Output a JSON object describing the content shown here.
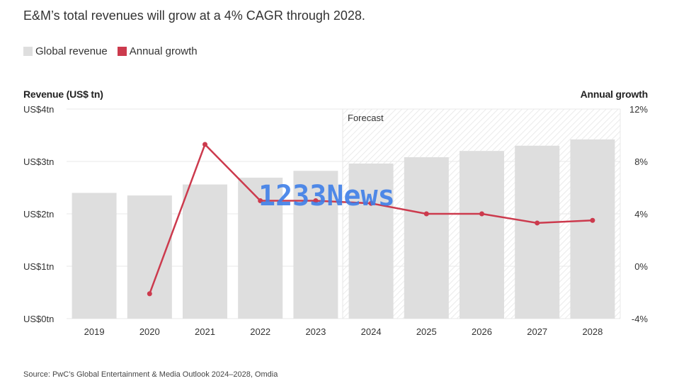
{
  "title": "E&M’s total revenues will grow at a 4% CAGR through 2028.",
  "source": "Source: PwC’s Global Entertainment & Media Outlook 2024–2028, Omdia",
  "watermark": "1233News",
  "colors": {
    "bar": "#dedede",
    "line": "#cc3a4d",
    "grid": "#e8e8e8",
    "forecast_hatch": "#e6e6e6"
  },
  "chart_data": {
    "type": "bar",
    "categories": [
      "2019",
      "2020",
      "2021",
      "2022",
      "2023",
      "2024",
      "2025",
      "2026",
      "2027",
      "2028"
    ],
    "series": [
      {
        "name": "Global revenue",
        "type": "bar",
        "axis": "left",
        "values": [
          2.4,
          2.35,
          2.56,
          2.69,
          2.82,
          2.96,
          3.08,
          3.2,
          3.3,
          3.42
        ]
      },
      {
        "name": "Annual growth",
        "type": "line",
        "axis": "right",
        "values": [
          null,
          -2.1,
          9.3,
          5.0,
          5.0,
          4.8,
          4.0,
          4.0,
          3.3,
          3.5
        ]
      }
    ],
    "left_axis": {
      "title": "Revenue (US$ tn)",
      "range": [
        0,
        4
      ],
      "ticks": [
        0,
        1,
        2,
        3,
        4
      ],
      "tick_labels": [
        "US$0tn",
        "US$1tn",
        "US$2tn",
        "US$3tn",
        "US$4tn"
      ]
    },
    "right_axis": {
      "title": "Annual growth",
      "range": [
        -4,
        12
      ],
      "ticks": [
        -4,
        0,
        4,
        8,
        12
      ],
      "tick_labels": [
        "-4%",
        "0%",
        "4%",
        "8%",
        "12%"
      ]
    },
    "forecast": {
      "label": "Forecast",
      "from": "2024"
    },
    "legend": {
      "placement": "top-left"
    },
    "grid": true
  }
}
